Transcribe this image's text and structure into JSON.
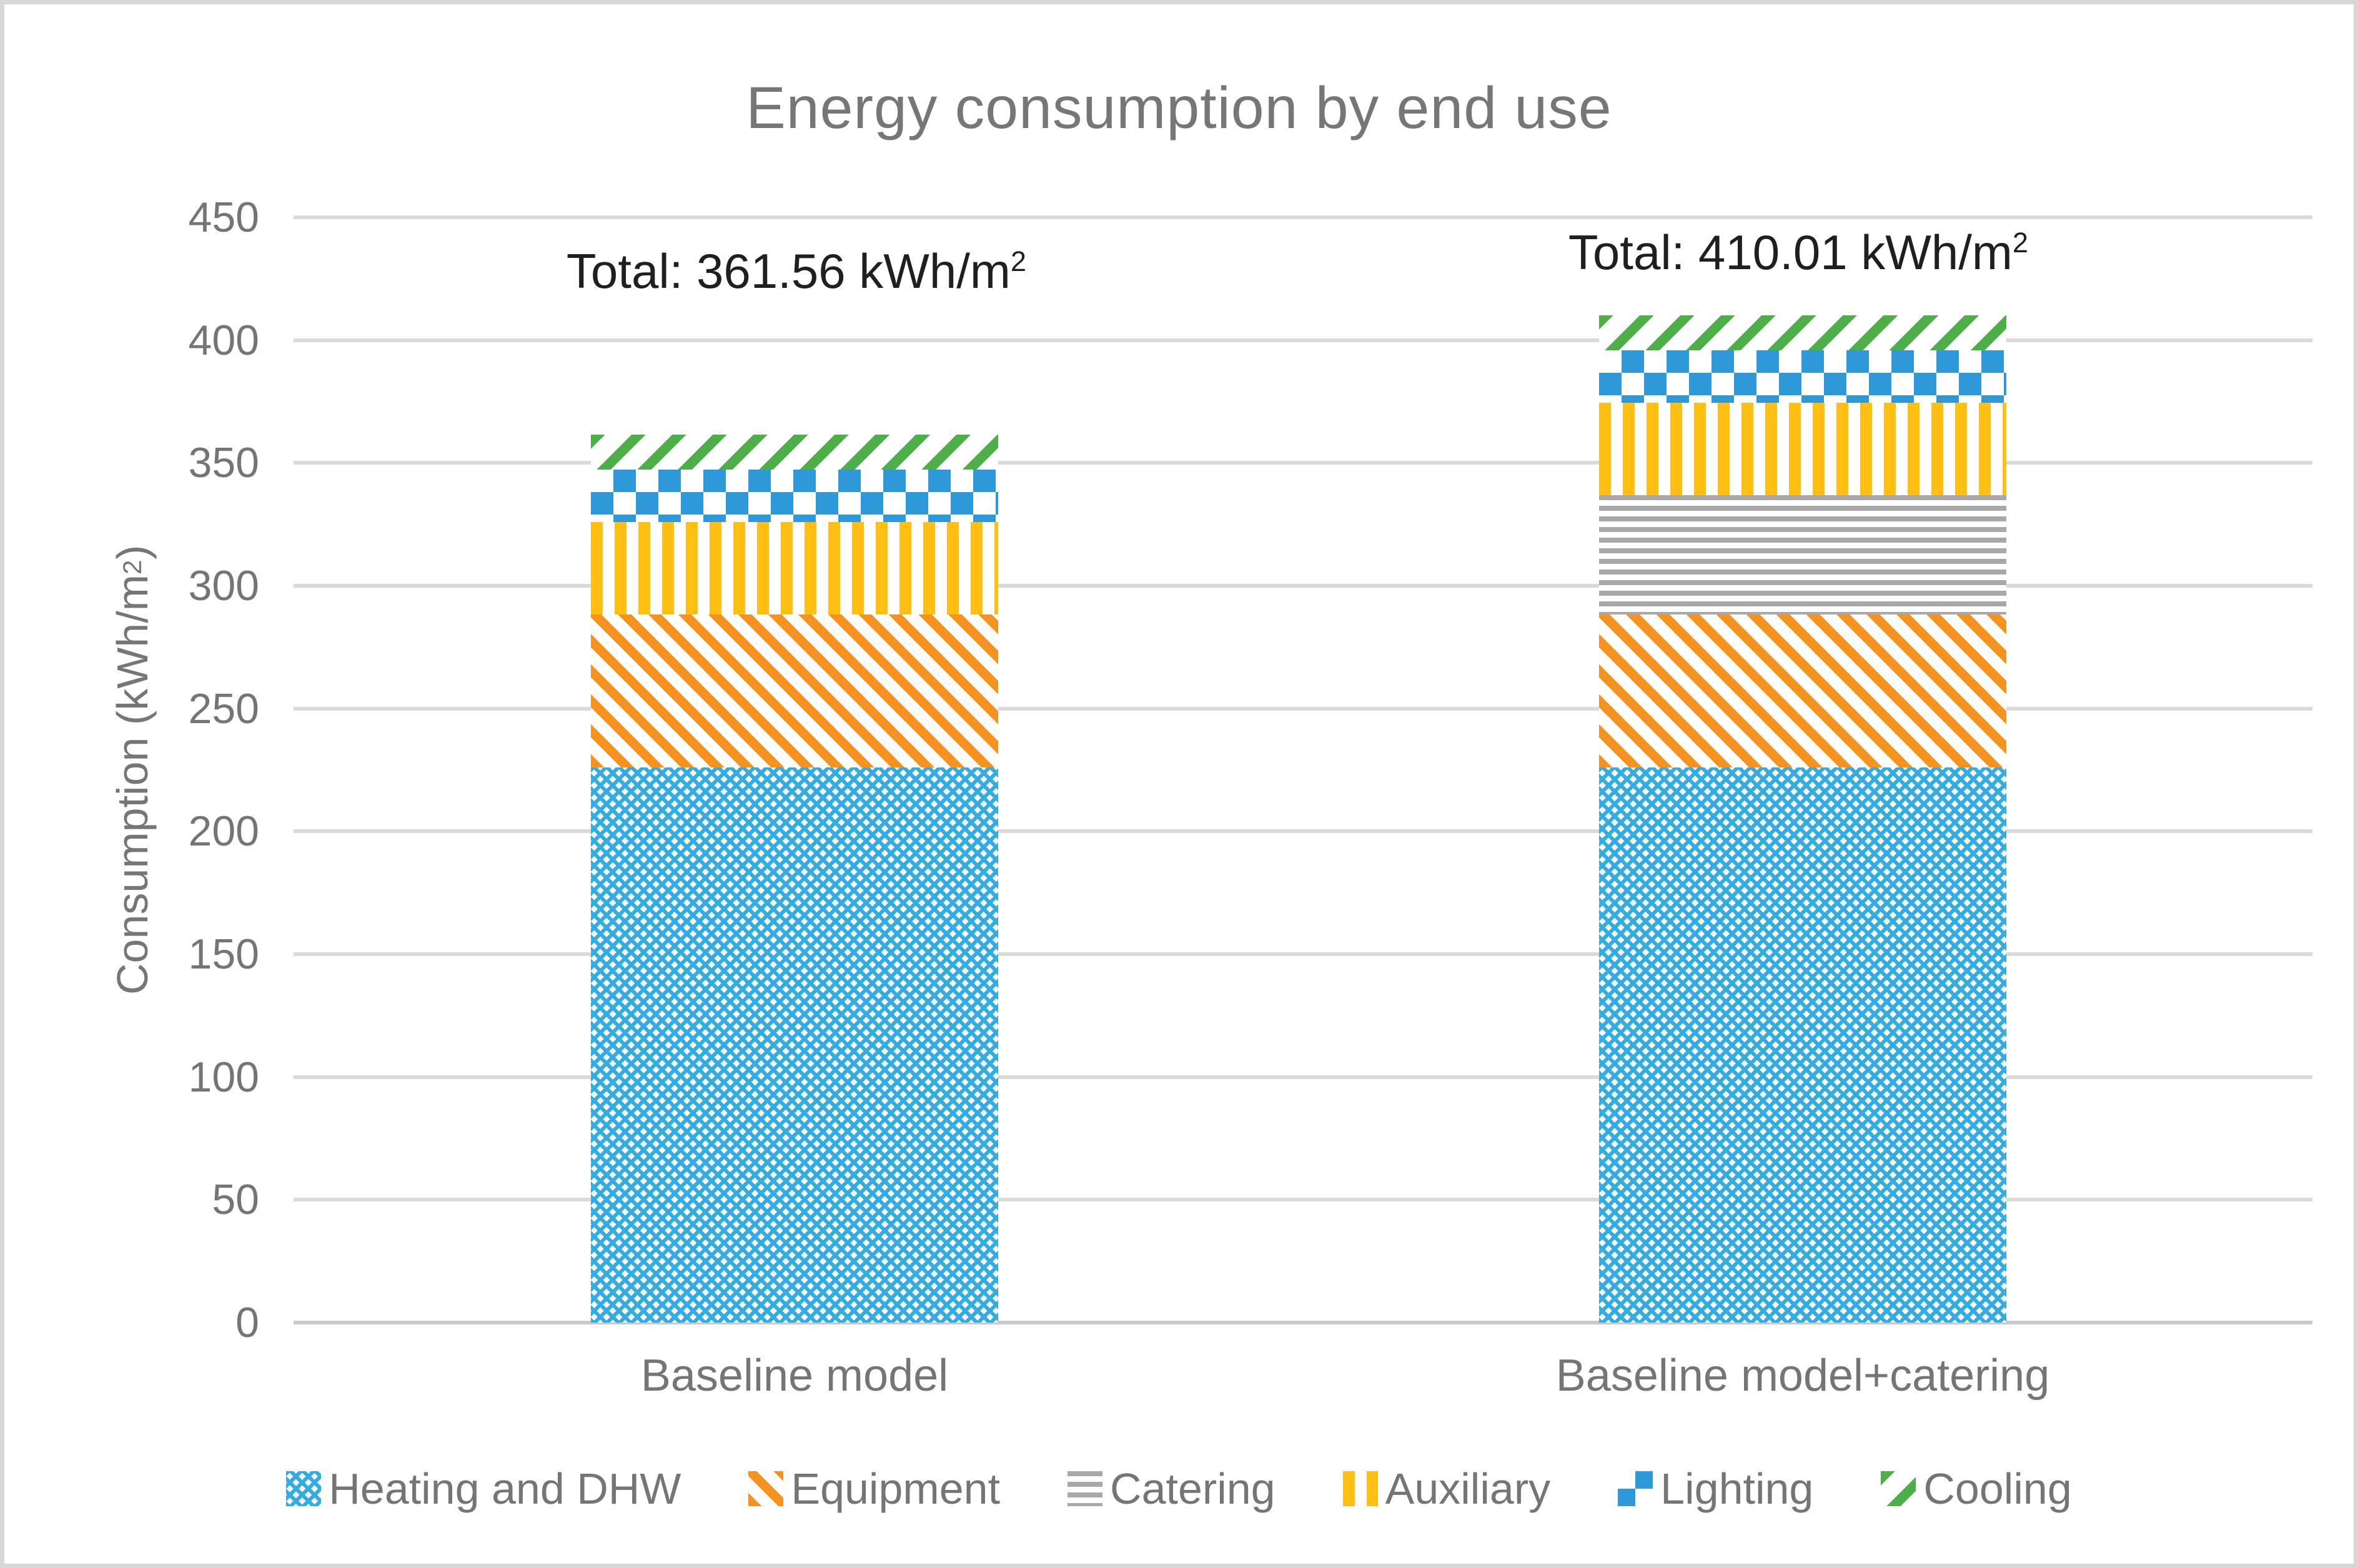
{
  "title": "Energy consumption by end use",
  "y_axis": {
    "title_prefix": "Consumption (kWh/m",
    "title_sup": "2",
    "title_suffix": ")"
  },
  "bars": [
    {
      "category": "Baseline model",
      "total_prefix": "Total: 361.56 kWh/m",
      "total_sup": "2"
    },
    {
      "category": "Baseline model+catering",
      "total_prefix": "Total: 410.01 kWh/m",
      "total_sup": "2"
    }
  ],
  "colors": {
    "heating": "#33ace3",
    "equipment": "#f6921e",
    "catering": "#a8a8a8",
    "auxiliary": "#ffc013",
    "lighting": "#2e99d9",
    "cooling": "#4caf47",
    "gridline": "#dadada",
    "text_gray": "#757575",
    "total_text": "#1f1f1f"
  },
  "chart_data": {
    "type": "bar",
    "stacked": true,
    "title": "Energy consumption by end use",
    "ylabel": "Consumption (kWh/m2)",
    "ylim": [
      0,
      450
    ],
    "ytick_step": 50,
    "yticks": [
      0,
      50,
      100,
      150,
      200,
      250,
      300,
      350,
      400,
      450
    ],
    "grid": true,
    "legend_position": "bottom",
    "categories": [
      "Baseline model",
      "Baseline model+catering"
    ],
    "totals": [
      361.56,
      410.01
    ],
    "total_labels": [
      "Total: 361.56 kWh/m2",
      "Total: 410.01 kWh/m2"
    ],
    "series": [
      {
        "name": "Heating and DHW",
        "pattern": "trellis",
        "color": "#33ace3",
        "values": [
          226.0,
          226.0
        ]
      },
      {
        "name": "Equipment",
        "pattern": "diag-down",
        "color": "#f6921e",
        "values": [
          62.4,
          62.4
        ]
      },
      {
        "name": "Catering",
        "pattern": "horizontal",
        "color": "#a8a8a8",
        "values": [
          0,
          48.45
        ]
      },
      {
        "name": "Auxiliary",
        "pattern": "vertical",
        "color": "#ffc013",
        "values": [
          37.6,
          37.6
        ]
      },
      {
        "name": "Lighting",
        "pattern": "checker",
        "color": "#2e99d9",
        "values": [
          21.4,
          21.4
        ]
      },
      {
        "name": "Cooling",
        "pattern": "diag-up",
        "color": "#4caf47",
        "values": [
          14.16,
          14.16
        ]
      }
    ]
  }
}
